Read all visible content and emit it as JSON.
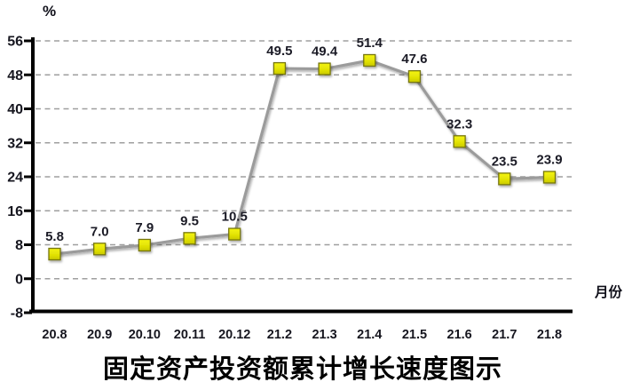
{
  "chart_data": {
    "type": "line",
    "title": "固定资产投资额累计增长速度图示",
    "y_axis_label": "%",
    "x_axis_label": "月份",
    "categories": [
      "20.8",
      "20.9",
      "20.10",
      "20.11",
      "20.12",
      "21.2",
      "21.3",
      "21.4",
      "21.5",
      "21.6",
      "21.7",
      "21.8"
    ],
    "values": [
      5.8,
      7.0,
      7.9,
      9.5,
      10.5,
      49.5,
      49.4,
      51.4,
      47.6,
      32.3,
      23.5,
      23.9
    ],
    "data_labels": [
      "5.8",
      "7.0",
      "7.9",
      "9.5",
      "10.5",
      "49.5",
      "49.4",
      "51.4",
      "47.6",
      "32.3",
      "23.5",
      "23.9"
    ],
    "ylim": [
      -8,
      56
    ],
    "y_ticks": [
      56,
      48,
      40,
      32,
      24,
      16,
      8,
      0,
      -8
    ],
    "y_tick_step": 8,
    "grid": "horizontal-dashed",
    "legend": "none",
    "colors": {
      "line": "#9b9b9b",
      "marker_fill_top": "#f2f20c",
      "marker_fill_bottom": "#cecd00",
      "marker_border": "#76760a",
      "axis": "#000000",
      "gridline": "#9f9f9f",
      "label_text": "#1b1b26"
    }
  }
}
